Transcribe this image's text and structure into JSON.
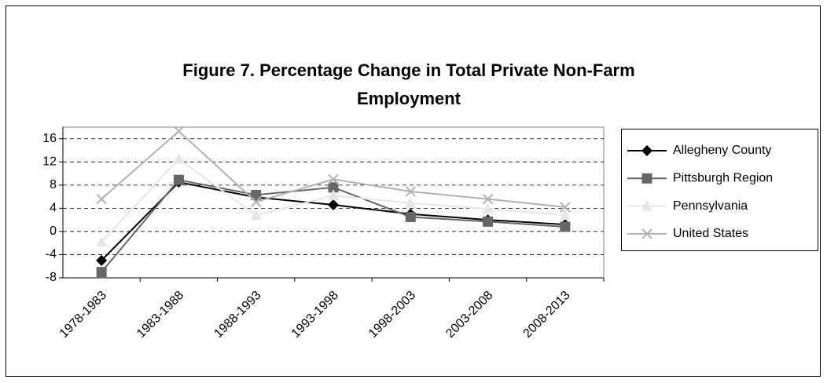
{
  "chart_data": {
    "type": "line",
    "title": "Figure 7. Percentage Change in Total Private Non-Farm Employment",
    "categories": [
      "1978-1983",
      "1983-1988",
      "1988-1993",
      "1993-1998",
      "1998-2003",
      "2003-2008",
      "2008-2013"
    ],
    "series": [
      {
        "name": "Allegheny County",
        "color": "#000000",
        "marker": "diamond",
        "values": [
          -5,
          8.5,
          5.9,
          4.6,
          3,
          2,
          1.2
        ]
      },
      {
        "name": "Pittsburgh Region",
        "color": "#666666",
        "marker": "square",
        "values": [
          -7,
          8.9,
          6.3,
          7.6,
          2.5,
          1.7,
          0.8
        ]
      },
      {
        "name": "Pennsylvania",
        "color": "#e6e6e6",
        "marker": "triangle",
        "values": [
          -1.8,
          12.5,
          2.8,
          6.2,
          4.9,
          3.9,
          2.8
        ]
      },
      {
        "name": "United States",
        "color": "#b0b0b0",
        "marker": "x",
        "values": [
          5.6,
          17.3,
          5.1,
          9,
          6.9,
          5.6,
          4.2
        ]
      }
    ],
    "ylim": [
      -8,
      18
    ],
    "yticks": [
      -8,
      -4,
      0,
      4,
      8,
      12,
      16
    ],
    "grid": true,
    "legend": "right"
  }
}
